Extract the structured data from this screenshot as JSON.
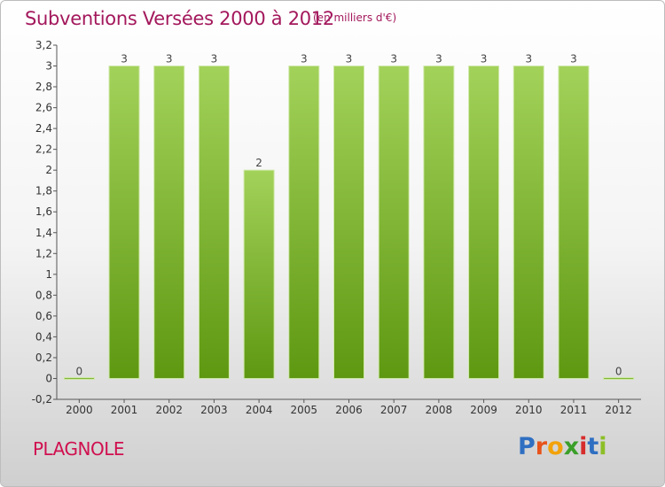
{
  "header": {
    "title": "Subventions Versées 2000 à 2012",
    "subtitle": "(en milliers d'€)"
  },
  "commune": "PLAGNOLE",
  "logo": {
    "letters": [
      "P",
      "r",
      "o",
      "x",
      "i",
      "t",
      "i"
    ],
    "colors": [
      "#2f6fc2",
      "#e7531a",
      "#f2a20a",
      "#3b9f2a",
      "#d72c2c",
      "#2f6fc2",
      "#8cbf26"
    ]
  },
  "colors": {
    "bar_top": "#a3d25a",
    "bar_bottom": "#5e9811"
  },
  "chart_data": {
    "type": "bar",
    "categories": [
      "2000",
      "2001",
      "2002",
      "2003",
      "2004",
      "2005",
      "2006",
      "2007",
      "2008",
      "2009",
      "2010",
      "2011",
      "2012"
    ],
    "values": [
      0,
      3,
      3,
      3,
      2,
      3,
      3,
      3,
      3,
      3,
      3,
      3,
      0
    ],
    "data_labels": [
      "0",
      "3",
      "3",
      "3",
      "2",
      "3",
      "3",
      "3",
      "3",
      "3",
      "3",
      "3",
      "0"
    ],
    "ylim": [
      -0.2,
      3.2
    ],
    "yticks": [
      "3,2",
      "3",
      "2,8",
      "2,6",
      "2,4",
      "2,2",
      "2",
      "1,8",
      "1,6",
      "1,4",
      "1,2",
      "1",
      "0,8",
      "0,6",
      "0,4",
      "0,2",
      "0",
      "-0,2"
    ],
    "ytick_values": [
      3.2,
      3,
      2.8,
      2.6,
      2.4,
      2.2,
      2,
      1.8,
      1.6,
      1.4,
      1.2,
      1,
      0.8,
      0.6,
      0.4,
      0.2,
      0,
      -0.2
    ],
    "grid": false,
    "legend": "none"
  }
}
